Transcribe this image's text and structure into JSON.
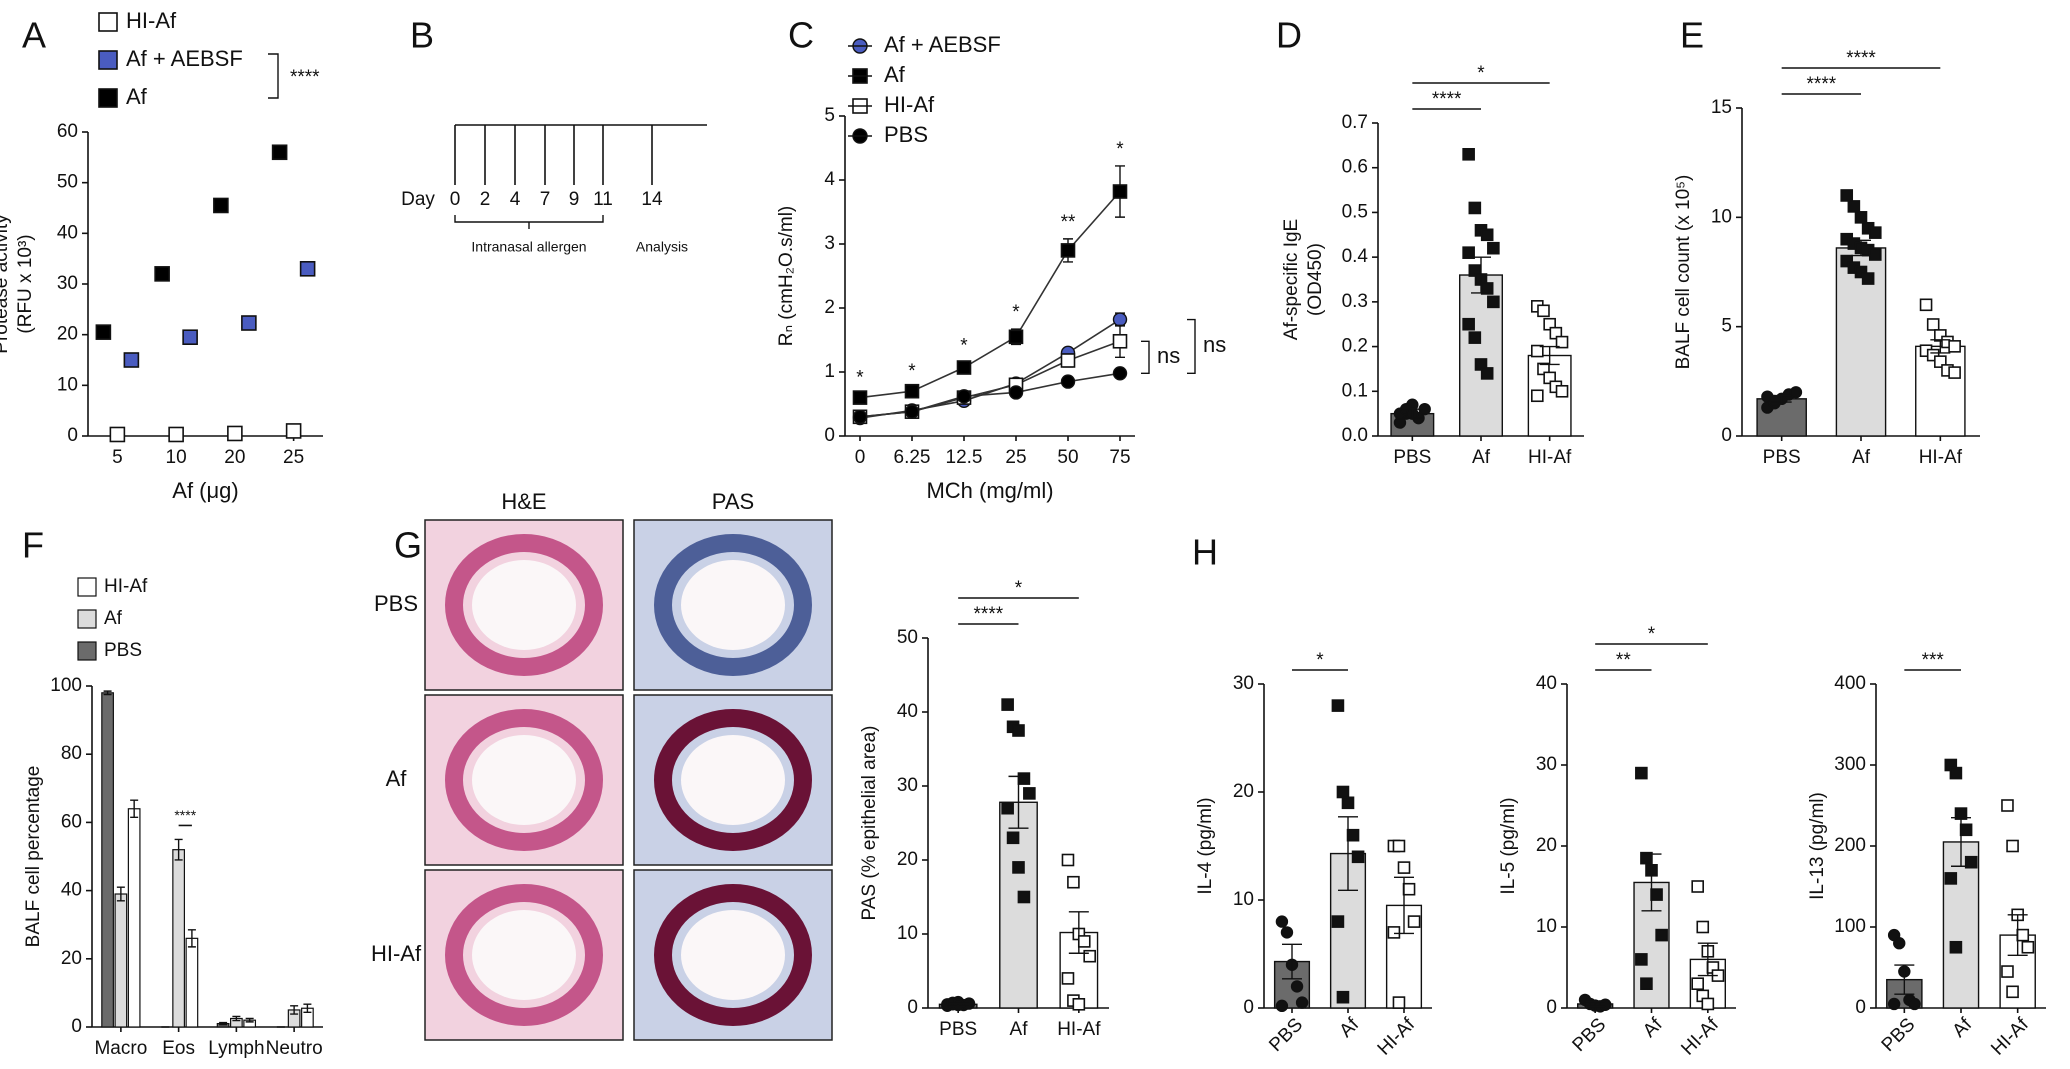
{
  "panel_labels": [
    "A",
    "B",
    "C",
    "D",
    "E",
    "F",
    "G",
    "H"
  ],
  "timeline": {
    "day_label": "Day",
    "days": [
      "0",
      "2",
      "4",
      "7",
      "9",
      "11",
      "14"
    ],
    "phase_labels": [
      "Intranasal allergen",
      "Analysis"
    ]
  },
  "histology": {
    "columns": [
      "H&E",
      "PAS"
    ],
    "rows": [
      "PBS",
      "Af",
      "HI-Af"
    ]
  },
  "chart_data": [
    {
      "type": "dot",
      "xlabel": "Af (μg)",
      "ylabel": [
        "Protease activity",
        "(RFU x 10³)"
      ],
      "categories": [
        "5",
        "10",
        "20",
        "25"
      ],
      "ylim": [
        0,
        60
      ],
      "yticks": [
        0,
        10,
        20,
        30,
        40,
        50,
        60
      ],
      "series": [
        {
          "name": "HI-Af",
          "color": "#ffffff",
          "values": [
            0.3,
            0.3,
            0.5,
            1
          ]
        },
        {
          "name": "Af + AEBSF",
          "color": "#4a5cc0",
          "values": [
            15,
            19.5,
            22.3,
            33
          ]
        },
        {
          "name": "Af",
          "color": "#000000",
          "values": [
            20.5,
            32,
            45.5,
            56
          ]
        }
      ],
      "legend_significance": "****"
    },
    {
      "type": "line",
      "xlabel": "MCh (mg/ml)",
      "ylabel": [
        "Rₙ (cmH₂O.s/ml)"
      ],
      "categories": [
        "0",
        "6.25",
        "12.5",
        "25",
        "50",
        "75"
      ],
      "ylim": [
        0,
        5
      ],
      "yticks": [
        0,
        1,
        2,
        3,
        4,
        5
      ],
      "series": [
        {
          "name": "Af + AEBSF",
          "color": "#4a5cc0",
          "marker": "circle",
          "values": [
            0.28,
            0.4,
            0.55,
            0.82,
            1.3,
            1.82
          ],
          "errors": [
            0.03,
            0.04,
            0.04,
            0.06,
            0.06,
            0.1
          ]
        },
        {
          "name": "Af",
          "color": "#000000",
          "marker": "square",
          "values": [
            0.6,
            0.7,
            1.07,
            1.55,
            2.9,
            3.82
          ],
          "errors": [
            0.05,
            0.05,
            0.08,
            0.12,
            0.18,
            0.4
          ]
        },
        {
          "name": "HI-Af",
          "color": "#ffffff",
          "marker": "square",
          "values": [
            0.3,
            0.38,
            0.6,
            0.8,
            1.18,
            1.48
          ],
          "errors": [
            0.03,
            0.04,
            0.05,
            0.07,
            0.1,
            0.25
          ]
        },
        {
          "name": "PBS",
          "color": "#000000",
          "marker": "circle",
          "values": [
            0.3,
            0.38,
            0.62,
            0.68,
            0.85,
            0.98
          ],
          "errors": [
            0.02,
            0.03,
            0.04,
            0.05,
            0.07,
            0.06
          ]
        }
      ],
      "point_labels": {
        "series": "Af",
        "labels": [
          "*",
          "*",
          "*",
          "*",
          "**",
          "*"
        ]
      },
      "significance": [
        {
          "series": [
            "HI-Af",
            "PBS"
          ],
          "label": "ns"
        },
        {
          "series": [
            "Af + AEBSF",
            "PBS"
          ],
          "label": "ns"
        }
      ]
    },
    {
      "type": "bar",
      "ylabel": [
        "Af-specific IgE",
        "(OD450)"
      ],
      "categories": [
        "PBS",
        "Af",
        "HI-Af"
      ],
      "ylim": [
        0,
        0.7
      ],
      "yticks": [
        {
          "value": 0,
          "label": "0.0"
        },
        0.1,
        0.2,
        0.3,
        0.4,
        0.5,
        0.6,
        0.7
      ],
      "colors": [
        "#6b6b6b",
        "#dcdcdc",
        "#ffffff"
      ],
      "markers": [
        "circle",
        "square",
        "open-square"
      ],
      "values": [
        0.05,
        0.36,
        0.18
      ],
      "errors": [
        0.01,
        0.04,
        0.02
      ],
      "points": [
        [
          0.03,
          0.05,
          0.07,
          0.04,
          0.06,
          0.05,
          0.06,
          0.05
        ],
        [
          0.63,
          0.51,
          0.46,
          0.45,
          0.42,
          0.41,
          0.37,
          0.35,
          0.33,
          0.3,
          0.25,
          0.22,
          0.16,
          0.14
        ],
        [
          0.29,
          0.28,
          0.25,
          0.23,
          0.21,
          0.19,
          0.15,
          0.13,
          0.11,
          0.1,
          0.09
        ]
      ],
      "significance": [
        {
          "groups": [
            "PBS",
            "Af"
          ],
          "label": "****"
        },
        {
          "groups": [
            "PBS",
            "HI-Af"
          ],
          "label": "*"
        }
      ]
    },
    {
      "type": "bar",
      "ylabel": [
        "BALF cell count (x 10⁵)"
      ],
      "categories": [
        "PBS",
        "Af",
        "HI-Af"
      ],
      "ylim": [
        0,
        15
      ],
      "yticks": [
        0,
        5,
        10,
        15
      ],
      "colors": [
        "#6b6b6b",
        "#dcdcdc",
        "#ffffff"
      ],
      "markers": [
        "circle",
        "square",
        "open-square"
      ],
      "values": [
        1.7,
        8.6,
        4.1
      ],
      "errors": [
        0.15,
        0.35,
        0.3
      ],
      "points": [
        [
          1.3,
          1.5,
          1.7,
          1.9,
          2.0,
          1.8,
          1.6
        ],
        [
          11,
          10.5,
          10,
          9.5,
          9.3,
          9,
          8.8,
          8.6,
          8.5,
          8.3,
          8,
          7.7,
          7.5,
          7.2
        ],
        [
          6,
          5.1,
          4.6,
          4.3,
          4.1,
          3.9,
          3.7,
          3.4,
          3,
          2.9
        ]
      ],
      "significance": [
        {
          "groups": [
            "PBS",
            "Af"
          ],
          "label": "****"
        },
        {
          "groups": [
            "PBS",
            "HI-Af"
          ],
          "label": "****"
        }
      ]
    },
    {
      "type": "grouped_bar",
      "ylabel": [
        "BALF cell percentage"
      ],
      "categories": [
        "Macro",
        "Eos",
        "Lymph",
        "Neutro"
      ],
      "ylim": [
        0,
        100
      ],
      "yticks": [
        0,
        20,
        40,
        60,
        80,
        100
      ],
      "series": [
        {
          "name": "PBS",
          "color": "#6b6b6b",
          "values": [
            98,
            0,
            1,
            0
          ],
          "errors": [
            0.5,
            0,
            0.3,
            0
          ]
        },
        {
          "name": "Af",
          "color": "#dcdcdc",
          "values": [
            39,
            52,
            2.5,
            5
          ],
          "errors": [
            2,
            3,
            0.6,
            1.2
          ]
        },
        {
          "name": "HI-Af",
          "color": "#ffffff",
          "values": [
            64,
            26,
            2,
            5.5
          ],
          "errors": [
            2.5,
            2.5,
            0.5,
            1.2
          ]
        }
      ],
      "significance": [
        {
          "category": "Eos",
          "label": "****"
        }
      ]
    },
    {
      "type": "bar",
      "ylabel": [
        "PAS (% epithelial area)"
      ],
      "categories": [
        "PBS",
        "Af",
        "HI-Af"
      ],
      "ylim": [
        0,
        50
      ],
      "yticks": [
        0,
        10,
        20,
        30,
        40,
        50
      ],
      "colors": [
        "#6b6b6b",
        "#dcdcdc",
        "#ffffff"
      ],
      "markers": [
        "circle",
        "square",
        "open-square"
      ],
      "values": [
        0.5,
        27.8,
        10.2
      ],
      "errors": [
        0.2,
        3.5,
        2.8
      ],
      "points": [
        [
          0.3,
          0.5,
          0.8,
          0.4,
          0.6,
          0.5,
          0.7,
          0.4
        ],
        [
          41,
          38,
          37.5,
          31,
          29,
          27,
          23,
          19,
          15
        ],
        [
          20,
          17,
          10,
          9,
          7,
          4,
          1,
          0.5
        ]
      ],
      "significance": [
        {
          "groups": [
            "PBS",
            "Af"
          ],
          "label": "****"
        },
        {
          "groups": [
            "PBS",
            "HI-Af"
          ],
          "label": "*"
        }
      ]
    },
    {
      "type": "bar",
      "ylabel": [
        "IL-4 (pg/ml)"
      ],
      "categories": [
        "PBS",
        "Af",
        "HI-Af"
      ],
      "xtick_rotation": -45,
      "ylim": [
        0,
        30
      ],
      "yticks": [
        0,
        10,
        20,
        30
      ],
      "colors": [
        "#6b6b6b",
        "#dcdcdc",
        "#ffffff"
      ],
      "markers": [
        "circle",
        "square",
        "open-square"
      ],
      "values": [
        4.3,
        14.3,
        9.5
      ],
      "errors": [
        1.6,
        3.4,
        2.6
      ],
      "points": [
        [
          8,
          7,
          4,
          2,
          0.5,
          0.2
        ],
        [
          28,
          20,
          19,
          16,
          14,
          8,
          1
        ],
        [
          15,
          15,
          13,
          11,
          8,
          7,
          0.5
        ]
      ],
      "significance": [
        {
          "groups": [
            "PBS",
            "Af"
          ],
          "label": "*"
        }
      ]
    },
    {
      "type": "bar",
      "ylabel": [
        "IL-5 (pg/ml)"
      ],
      "categories": [
        "PBS",
        "Af",
        "HI-Af"
      ],
      "xtick_rotation": -45,
      "ylim": [
        0,
        40
      ],
      "yticks": [
        0,
        10,
        20,
        30,
        40
      ],
      "colors": [
        "#6b6b6b",
        "#dcdcdc",
        "#ffffff"
      ],
      "markers": [
        "circle",
        "square",
        "open-square"
      ],
      "values": [
        0.5,
        15.5,
        6
      ],
      "errors": [
        0.3,
        3.5,
        2
      ],
      "points": [
        [
          1,
          0.5,
          0.3,
          0.2,
          0.4
        ],
        [
          29,
          18.5,
          17,
          14,
          9,
          6,
          3
        ],
        [
          15,
          10,
          7,
          5,
          4,
          3,
          1.5,
          0.5
        ]
      ],
      "significance": [
        {
          "groups": [
            "PBS",
            "Af"
          ],
          "label": "**"
        },
        {
          "groups": [
            "PBS",
            "HI-Af"
          ],
          "label": "*"
        }
      ]
    },
    {
      "type": "bar",
      "ylabel": [
        "IL-13 (pg/ml)"
      ],
      "categories": [
        "PBS",
        "Af",
        "HI-Af"
      ],
      "xtick_rotation": -45,
      "ylim": [
        0,
        400
      ],
      "yticks": [
        0,
        100,
        200,
        300,
        400
      ],
      "colors": [
        "#6b6b6b",
        "#dcdcdc",
        "#ffffff"
      ],
      "markers": [
        "circle",
        "square",
        "open-square"
      ],
      "values": [
        35,
        205,
        90
      ],
      "errors": [
        18,
        30,
        25
      ],
      "points": [
        [
          90,
          80,
          45,
          10,
          5,
          5
        ],
        [
          300,
          290,
          240,
          220,
          180,
          160,
          75
        ],
        [
          250,
          200,
          115,
          90,
          75,
          45,
          20
        ]
      ],
      "significance": [
        {
          "groups": [
            "PBS",
            "Af"
          ],
          "label": "***"
        }
      ]
    }
  ]
}
